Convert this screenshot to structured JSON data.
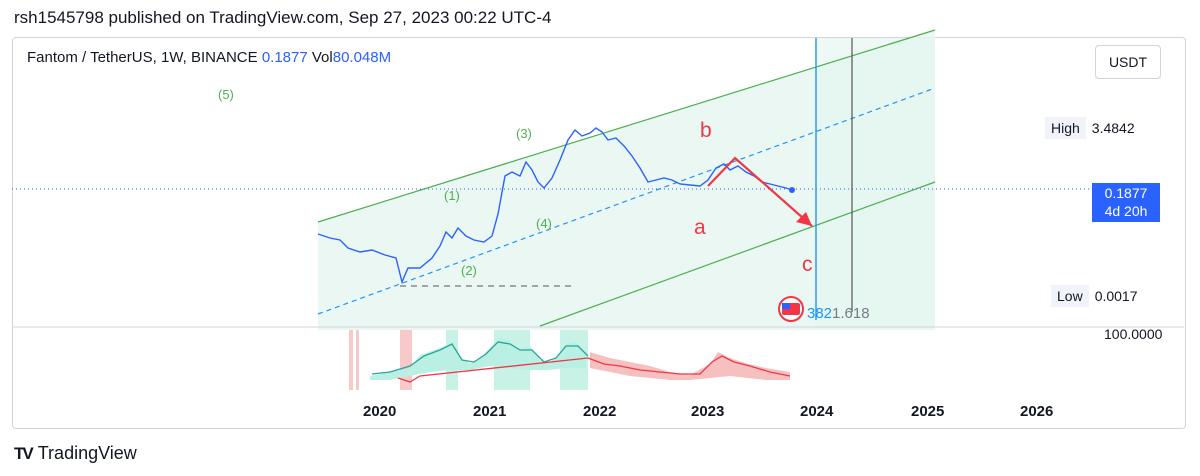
{
  "publish_line": "rsh1545798 published on TradingView.com, Sep 27, 2023 00:22 UTC-4",
  "symbol": {
    "name": "Fantom / TetherUS, 1W, BINANCE",
    "price": "0.1877",
    "vol_label": "Vol",
    "vol_value": "80.048M"
  },
  "currency": "USDT",
  "high": {
    "label": "High",
    "value": "3.4842"
  },
  "low": {
    "label": "Low",
    "value": "0.0017"
  },
  "last_price": {
    "value": "0.1877",
    "countdown": "4d 20h"
  },
  "indicator_value": "100.0000",
  "fib_label": {
    "a": "382",
    "b": "1.618"
  },
  "brand": {
    "logo": "TV",
    "name": "TradingView"
  },
  "chart_data": {
    "type": "line",
    "x_ticks": [
      "2020",
      "2021",
      "2022",
      "2023",
      "2024",
      "2025",
      "2026"
    ],
    "wave_labels": [
      "(1)",
      "(2)",
      "(3)",
      "(4)",
      "(5)"
    ],
    "abc_labels": [
      "a",
      "b",
      "c"
    ],
    "colors": {
      "price": "#2962ff",
      "channel": "#4caf50",
      "abc": "#f23645",
      "midline": "#2196f3",
      "band": "#e8f6f1"
    }
  }
}
